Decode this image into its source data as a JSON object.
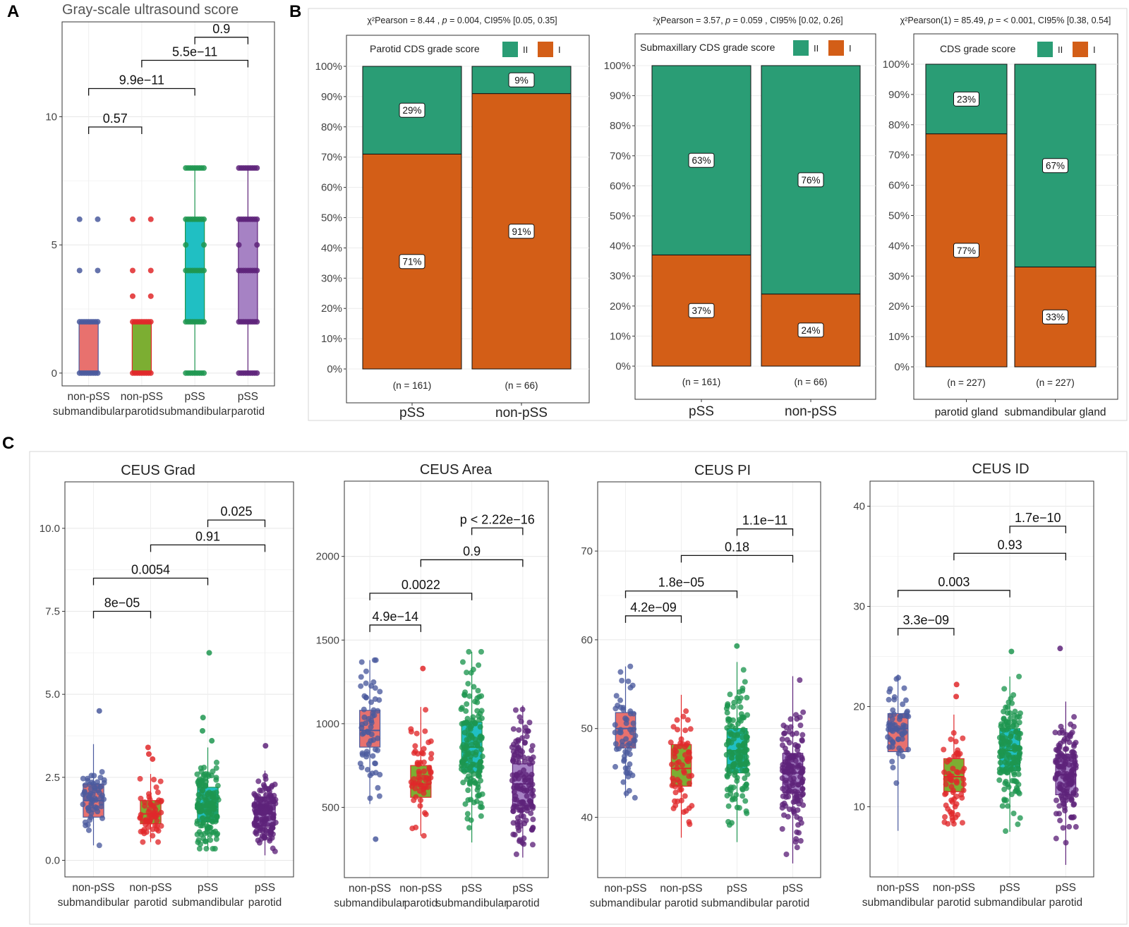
{
  "panel_labels": {
    "a": "A",
    "b": "B",
    "c": "C"
  },
  "colors": {
    "submand_nonpss": "#E8716E",
    "parotid_nonpss": "#7CAE32",
    "submand_pss": "#20BFC3",
    "parotid_pss": "#A682C4",
    "pt_blue": "#4A5A9E",
    "pt_red": "#E0282A",
    "pt_green": "#1E9650",
    "pt_purple": "#5E237A",
    "grade_II": "#2A9D75",
    "grade_I": "#D35E17"
  },
  "chart_data": [
    {
      "id": "A",
      "type": "box",
      "title": "Gray-scale ultrasound score",
      "groups": [
        {
          "line1": "non-pSS",
          "line2": "submandibular",
          "q1": 0,
          "median": 2,
          "q3": 2,
          "lo": 0,
          "hi": 2,
          "points": [
            0,
            2,
            4,
            6
          ],
          "outliers": [
            4,
            6
          ]
        },
        {
          "line1": "non-pSS",
          "line2": "parotid",
          "q1": 0,
          "median": 0,
          "q3": 2,
          "lo": 0,
          "hi": 2,
          "points": [
            0,
            2,
            3,
            4,
            6
          ],
          "outliers": [
            3,
            4,
            6
          ]
        },
        {
          "line1": "pSS",
          "line2": "submandibular",
          "q1": 2,
          "median": 4,
          "q3": 6,
          "lo": 0,
          "hi": 8,
          "points": [
            0,
            2,
            4,
            5,
            6,
            8
          ],
          "outliers": []
        },
        {
          "line1": "pSS",
          "line2": "parotid",
          "q1": 2,
          "median": 4,
          "q3": 6,
          "lo": 0,
          "hi": 8,
          "points": [
            0,
            2,
            4,
            5,
            6,
            8
          ],
          "outliers": []
        }
      ],
      "ylim": [
        -0.5,
        13.7
      ],
      "yticks": [
        {
          "v": 0,
          "l": "0"
        },
        {
          "v": 5,
          "l": "5"
        },
        {
          "v": 10,
          "l": "10"
        }
      ],
      "brackets": [
        {
          "a": 0,
          "b": 1,
          "y": 9.6,
          "label": "0.57"
        },
        {
          "a": 0,
          "b": 2,
          "y": 11.1,
          "label": "9.9e−11"
        },
        {
          "a": 1,
          "b": 3,
          "y": 12.2,
          "label": "5.5e−11"
        },
        {
          "a": 2,
          "b": 3,
          "y": 13.1,
          "label": "0.9"
        }
      ]
    },
    {
      "id": "B1",
      "type": "stacked_bar_percent",
      "stat_parts": [
        "χ²Pearson = 8.44 , ",
        "p",
        " = 0.004, CI95% [0.05, 0.35]"
      ],
      "legend_title": "Parotid CDS grade score",
      "legend_II": "II",
      "legend_I": "I",
      "categories": [
        "pSS",
        "non-pSS"
      ],
      "n_labels": [
        "(n = 161)",
        "(n = 66)"
      ],
      "series": [
        {
          "name": "I",
          "values": [
            71,
            91
          ],
          "labels": [
            "71%",
            "91%"
          ]
        },
        {
          "name": "II",
          "values": [
            29,
            9
          ],
          "labels": [
            "29%",
            "9%"
          ]
        }
      ],
      "ytick_labels": [
        "0%",
        "10%",
        "20%",
        "30%",
        "40%",
        "50%",
        "60%",
        "70%",
        "80%",
        "90%",
        "100%"
      ]
    },
    {
      "id": "B2",
      "type": "stacked_bar_percent",
      "stat_parts": [
        "²χPearson =  3.57, ",
        "p",
        " = 0.059 , CI95% [0.02, 0.26]"
      ],
      "legend_title": "Submaxillary CDS grade score",
      "legend_II": "II",
      "legend_I": "I",
      "categories": [
        "pSS",
        "non-pSS"
      ],
      "n_labels": [
        "(n = 161)",
        "(n = 66)"
      ],
      "series": [
        {
          "name": "I",
          "values": [
            37,
            24
          ],
          "labels": [
            "37%",
            "24%"
          ]
        },
        {
          "name": "II",
          "values": [
            63,
            76
          ],
          "labels": [
            "63%",
            "76%"
          ]
        }
      ],
      "ytick_labels": [
        "0%",
        "10%",
        "20%",
        "30%",
        "40%",
        "50%",
        "60%",
        "70%",
        "80%",
        "90%",
        "100%"
      ]
    },
    {
      "id": "B3",
      "type": "stacked_bar_percent",
      "stat_parts": [
        "χ²Pearson(1) = 85.49, ",
        "p",
        " = < 0.001, CI95% [0.38, 0.54]"
      ],
      "legend_title": "CDS grade score",
      "legend_II": "II",
      "legend_I": "I",
      "categories": [
        "parotid gland",
        "submandibular gland"
      ],
      "n_labels": [
        "(n = 227)",
        "(n = 227)"
      ],
      "series": [
        {
          "name": "I",
          "values": [
            77,
            33
          ],
          "labels": [
            "77%",
            "33%"
          ]
        },
        {
          "name": "II",
          "values": [
            23,
            67
          ],
          "labels": [
            "23%",
            "67%"
          ]
        }
      ],
      "ytick_labels": [
        "0%",
        "10%",
        "20%",
        "30%",
        "40%",
        "50%",
        "60%",
        "70%",
        "80%",
        "90%",
        "100%"
      ]
    },
    {
      "id": "C1",
      "type": "box_jitter",
      "title": "CEUS Grad",
      "ylim": [
        -0.5,
        11.4
      ],
      "yticks": [
        {
          "v": 0,
          "l": "0.0"
        },
        {
          "v": 2.5,
          "l": "2.5"
        },
        {
          "v": 5,
          "l": "5.0"
        },
        {
          "v": 7.5,
          "l": "7.5"
        },
        {
          "v": 10,
          "l": "10.0"
        }
      ],
      "groups": [
        {
          "line1": "non-pSS",
          "line2": "submandibular",
          "q1": 1.3,
          "median": 1.8,
          "q3": 2.3,
          "lo": 0.45,
          "hi": 3.5,
          "jitter": {
            "n": 60,
            "spread": 0.55
          },
          "outliers": [
            4.5
          ]
        },
        {
          "line1": "non-pSS",
          "line2": "parotid",
          "q1": 1.1,
          "median": 1.4,
          "q3": 1.8,
          "lo": 0.55,
          "hi": 2.6,
          "jitter": {
            "n": 60,
            "spread": 0.45
          },
          "outliers": [
            3.05,
            3.2,
            3.4
          ]
        },
        {
          "line1": "pSS",
          "line2": "submandibular",
          "q1": 1.15,
          "median": 1.6,
          "q3": 2.2,
          "lo": 0.35,
          "hi": 3.4,
          "jitter": {
            "n": 150,
            "spread": 0.6
          },
          "outliers": [
            3.6,
            3.9,
            4.3,
            6.25
          ]
        },
        {
          "line1": "pSS",
          "line2": "parotid",
          "q1": 1.05,
          "median": 1.4,
          "q3": 1.9,
          "lo": 0.15,
          "hi": 2.7,
          "jitter": {
            "n": 140,
            "spread": 0.5
          },
          "outliers": [
            3.45
          ]
        }
      ],
      "brackets": [
        {
          "a": 0,
          "b": 1,
          "y": 7.5,
          "label": "8e−05"
        },
        {
          "a": 0,
          "b": 2,
          "y": 8.5,
          "label": "0.0054"
        },
        {
          "a": 1,
          "b": 3,
          "y": 9.5,
          "label": "0.91"
        },
        {
          "a": 2,
          "b": 3,
          "y": 10.25,
          "label": "0.025"
        }
      ]
    },
    {
      "id": "C2",
      "type": "box_jitter",
      "title": "CEUS Area",
      "ylim": [
        80,
        2450
      ],
      "yticks": [
        {
          "v": 500,
          "l": "500"
        },
        {
          "v": 1000,
          "l": "1000"
        },
        {
          "v": 1500,
          "l": "1500"
        },
        {
          "v": 2000,
          "l": "2000"
        }
      ],
      "groups": [
        {
          "line1": "non-pSS",
          "line2": "submandibular",
          "q1": 860,
          "median": 960,
          "q3": 1080,
          "lo": 520,
          "hi": 1380,
          "jitter": {
            "n": 60,
            "spread": 200
          },
          "outliers": [
            310
          ]
        },
        {
          "line1": "non-pSS",
          "line2": "parotid",
          "q1": 560,
          "median": 640,
          "q3": 750,
          "lo": 330,
          "hi": 1100,
          "jitter": {
            "n": 60,
            "spread": 180
          },
          "outliers": [
            1330
          ]
        },
        {
          "line1": "pSS",
          "line2": "submandibular",
          "q1": 710,
          "median": 860,
          "q3": 1010,
          "lo": 290,
          "hi": 1430,
          "jitter": {
            "n": 150,
            "spread": 230
          },
          "outliers": []
        },
        {
          "line1": "pSS",
          "line2": "parotid",
          "q1": 510,
          "median": 640,
          "q3": 760,
          "lo": 200,
          "hi": 1110,
          "jitter": {
            "n": 140,
            "spread": 180
          },
          "outliers": []
        }
      ],
      "brackets": [
        {
          "a": 0,
          "b": 1,
          "y": 1590,
          "label": "4.9e−14"
        },
        {
          "a": 0,
          "b": 2,
          "y": 1780,
          "label": "0.0022"
        },
        {
          "a": 1,
          "b": 3,
          "y": 1980,
          "label": "0.9"
        },
        {
          "a": 2,
          "b": 3,
          "y": 2170,
          "label": "p < 2.22e−16"
        }
      ]
    },
    {
      "id": "C3",
      "type": "box_jitter",
      "title": "CEUS PI",
      "ylim": [
        33.2,
        77.8
      ],
      "yticks": [
        {
          "v": 40,
          "l": "40"
        },
        {
          "v": 50,
          "l": "50"
        },
        {
          "v": 60,
          "l": "60"
        },
        {
          "v": 70,
          "l": "70"
        }
      ],
      "groups": [
        {
          "line1": "non-pSS",
          "line2": "submandibular",
          "q1": 47.8,
          "median": 50,
          "q3": 51.8,
          "lo": 42.2,
          "hi": 57,
          "jitter": {
            "n": 60,
            "spread": 3.5
          },
          "outliers": []
        },
        {
          "line1": "non-pSS",
          "line2": "parotid",
          "q1": 43.5,
          "median": 45.5,
          "q3": 48.2,
          "lo": 37.7,
          "hi": 53.8,
          "jitter": {
            "n": 60,
            "spread": 3.8
          },
          "outliers": []
        },
        {
          "line1": "pSS",
          "line2": "submandibular",
          "q1": 45,
          "median": 47.5,
          "q3": 50,
          "lo": 37.2,
          "hi": 57.5,
          "jitter": {
            "n": 150,
            "spread": 4
          },
          "outliers": [
            59.3
          ]
        },
        {
          "line1": "pSS",
          "line2": "parotid",
          "q1": 42.8,
          "median": 45,
          "q3": 47.2,
          "lo": 34.8,
          "hi": 55.9,
          "jitter": {
            "n": 140,
            "spread": 3.6
          },
          "outliers": []
        }
      ],
      "brackets": [
        {
          "a": 0,
          "b": 1,
          "y": 62.7,
          "label": "4.2e−09"
        },
        {
          "a": 0,
          "b": 2,
          "y": 65.5,
          "label": "1.8e−05"
        },
        {
          "a": 1,
          "b": 3,
          "y": 69.5,
          "label": "0.18"
        },
        {
          "a": 2,
          "b": 3,
          "y": 72.5,
          "label": "1.1e−11"
        }
      ]
    },
    {
      "id": "C4",
      "type": "box_jitter",
      "title": "CEUS ID",
      "ylim": [
        3,
        42.5
      ],
      "yticks": [
        {
          "v": 10,
          "l": "10"
        },
        {
          "v": 20,
          "l": "20"
        },
        {
          "v": 30,
          "l": "30"
        },
        {
          "v": 40,
          "l": "40"
        }
      ],
      "groups": [
        {
          "line1": "non-pSS",
          "line2": "submandibular",
          "q1": 15.5,
          "median": 17.8,
          "q3": 19.3,
          "lo": 7.6,
          "hi": 23.2,
          "jitter": {
            "n": 60,
            "spread": 2.4
          },
          "outliers": []
        },
        {
          "line1": "non-pSS",
          "line2": "parotid",
          "q1": 11.5,
          "median": 13,
          "q3": 14.8,
          "lo": 8.3,
          "hi": 19.2,
          "jitter": {
            "n": 60,
            "spread": 2.2
          },
          "outliers": [
            21,
            22.2
          ]
        },
        {
          "line1": "pSS",
          "line2": "submandibular",
          "q1": 13.6,
          "median": 15.6,
          "q3": 17.8,
          "lo": 7.5,
          "hi": 23,
          "jitter": {
            "n": 150,
            "spread": 2.8
          },
          "outliers": [
            25.5
          ]
        },
        {
          "line1": "pSS",
          "line2": "parotid",
          "q1": 11.2,
          "median": 13.2,
          "q3": 15.2,
          "lo": 4.2,
          "hi": 20.5,
          "jitter": {
            "n": 140,
            "spread": 2.7
          },
          "outliers": [
            25.8
          ]
        }
      ],
      "brackets": [
        {
          "a": 0,
          "b": 1,
          "y": 27.8,
          "label": "3.3e−09"
        },
        {
          "a": 0,
          "b": 2,
          "y": 31.6,
          "label": "0.003"
        },
        {
          "a": 1,
          "b": 3,
          "y": 35.3,
          "label": "0.93"
        },
        {
          "a": 2,
          "b": 3,
          "y": 38,
          "label": "1.7e−10"
        }
      ]
    }
  ]
}
